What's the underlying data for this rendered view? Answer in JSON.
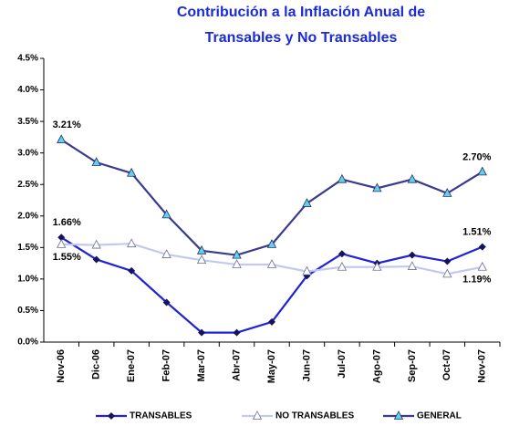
{
  "chart_data": {
    "type": "line",
    "title": [
      "Contribución a la Inflación Anual de",
      "Transables y No Transables"
    ],
    "categories": [
      "Nov-06",
      "Dic-06",
      "Ene-07",
      "Feb-07",
      "Mar-07",
      "Abr-07",
      "May-07",
      "Jun-07",
      "Jul-07",
      "Ago-07",
      "Sep-07",
      "Oct-07",
      "Nov-07"
    ],
    "series": [
      {
        "name": "TRANSABLES",
        "color": "#1f22d8",
        "marker": "diamond",
        "marker_color": "#14145a",
        "values": [
          1.66,
          1.31,
          1.13,
          0.63,
          0.15,
          0.15,
          0.32,
          1.05,
          1.4,
          1.25,
          1.38,
          1.28,
          1.51
        ],
        "value_labels": [
          "1.66%",
          null,
          null,
          null,
          null,
          null,
          null,
          null,
          null,
          null,
          null,
          null,
          "1.51%"
        ]
      },
      {
        "name": "NO TRANSABLES",
        "color": "#c3c8ee",
        "marker": "triangle-open",
        "marker_color": "#6a6f9a",
        "values": [
          1.55,
          1.54,
          1.56,
          1.39,
          1.3,
          1.23,
          1.23,
          1.12,
          1.19,
          1.19,
          1.2,
          1.08,
          1.19
        ],
        "value_labels": [
          "1.55%",
          null,
          null,
          null,
          null,
          null,
          null,
          null,
          null,
          null,
          null,
          null,
          "1.19%"
        ]
      },
      {
        "name": "GENERAL",
        "color": "#3a3a8e",
        "marker": "triangle",
        "marker_color": "#5fd3ec",
        "values": [
          3.21,
          2.85,
          2.68,
          2.02,
          1.45,
          1.38,
          1.55,
          2.2,
          2.58,
          2.44,
          2.58,
          2.36,
          2.7
        ],
        "value_labels": [
          "3.21%",
          null,
          null,
          null,
          null,
          null,
          null,
          null,
          null,
          null,
          null,
          null,
          "2.70%"
        ]
      }
    ],
    "ylim": [
      0,
      4.5
    ],
    "yticks": [
      {
        "value": 0,
        "label": "0.0%"
      },
      {
        "value": 0.5,
        "label": "0.5%"
      },
      {
        "value": 1,
        "label": "1.0%"
      },
      {
        "value": 1.5,
        "label": "1.5%"
      },
      {
        "value": 2,
        "label": "2.0%"
      },
      {
        "value": 2.5,
        "label": "2.5%"
      },
      {
        "value": 3,
        "label": "3.0%"
      },
      {
        "value": 3.5,
        "label": "3.5%"
      },
      {
        "value": 4,
        "label": "4.0%"
      },
      {
        "value": 4.5,
        "label": "4.5%"
      }
    ],
    "grid": false,
    "legend": "bottom"
  }
}
